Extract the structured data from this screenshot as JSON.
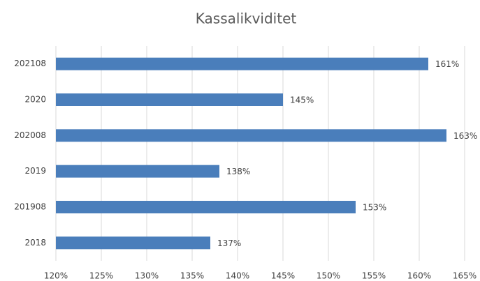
{
  "chart_data": {
    "type": "bar",
    "orientation": "horizontal",
    "title": "Kassalikviditet",
    "categories": [
      "202108",
      "2020",
      "202008",
      "2019",
      "201908",
      "2018"
    ],
    "values": [
      161,
      145,
      163,
      138,
      153,
      137
    ],
    "value_labels": [
      "161%",
      "145%",
      "163%",
      "138%",
      "153%",
      "137%"
    ],
    "color": "#4a7ebb",
    "xlim": [
      120,
      165
    ],
    "xticks": [
      {
        "value": 120,
        "label": "120%"
      },
      {
        "value": 125,
        "label": "125%"
      },
      {
        "value": 130,
        "label": "130%"
      },
      {
        "value": 135,
        "label": "135%"
      },
      {
        "value": 140,
        "label": "140%"
      },
      {
        "value": 145,
        "label": "145%"
      },
      {
        "value": 150,
        "label": "150%"
      },
      {
        "value": 155,
        "label": "155%"
      },
      {
        "value": 160,
        "label": "160%"
      },
      {
        "value": 165,
        "label": "165%"
      }
    ],
    "grid": true
  }
}
